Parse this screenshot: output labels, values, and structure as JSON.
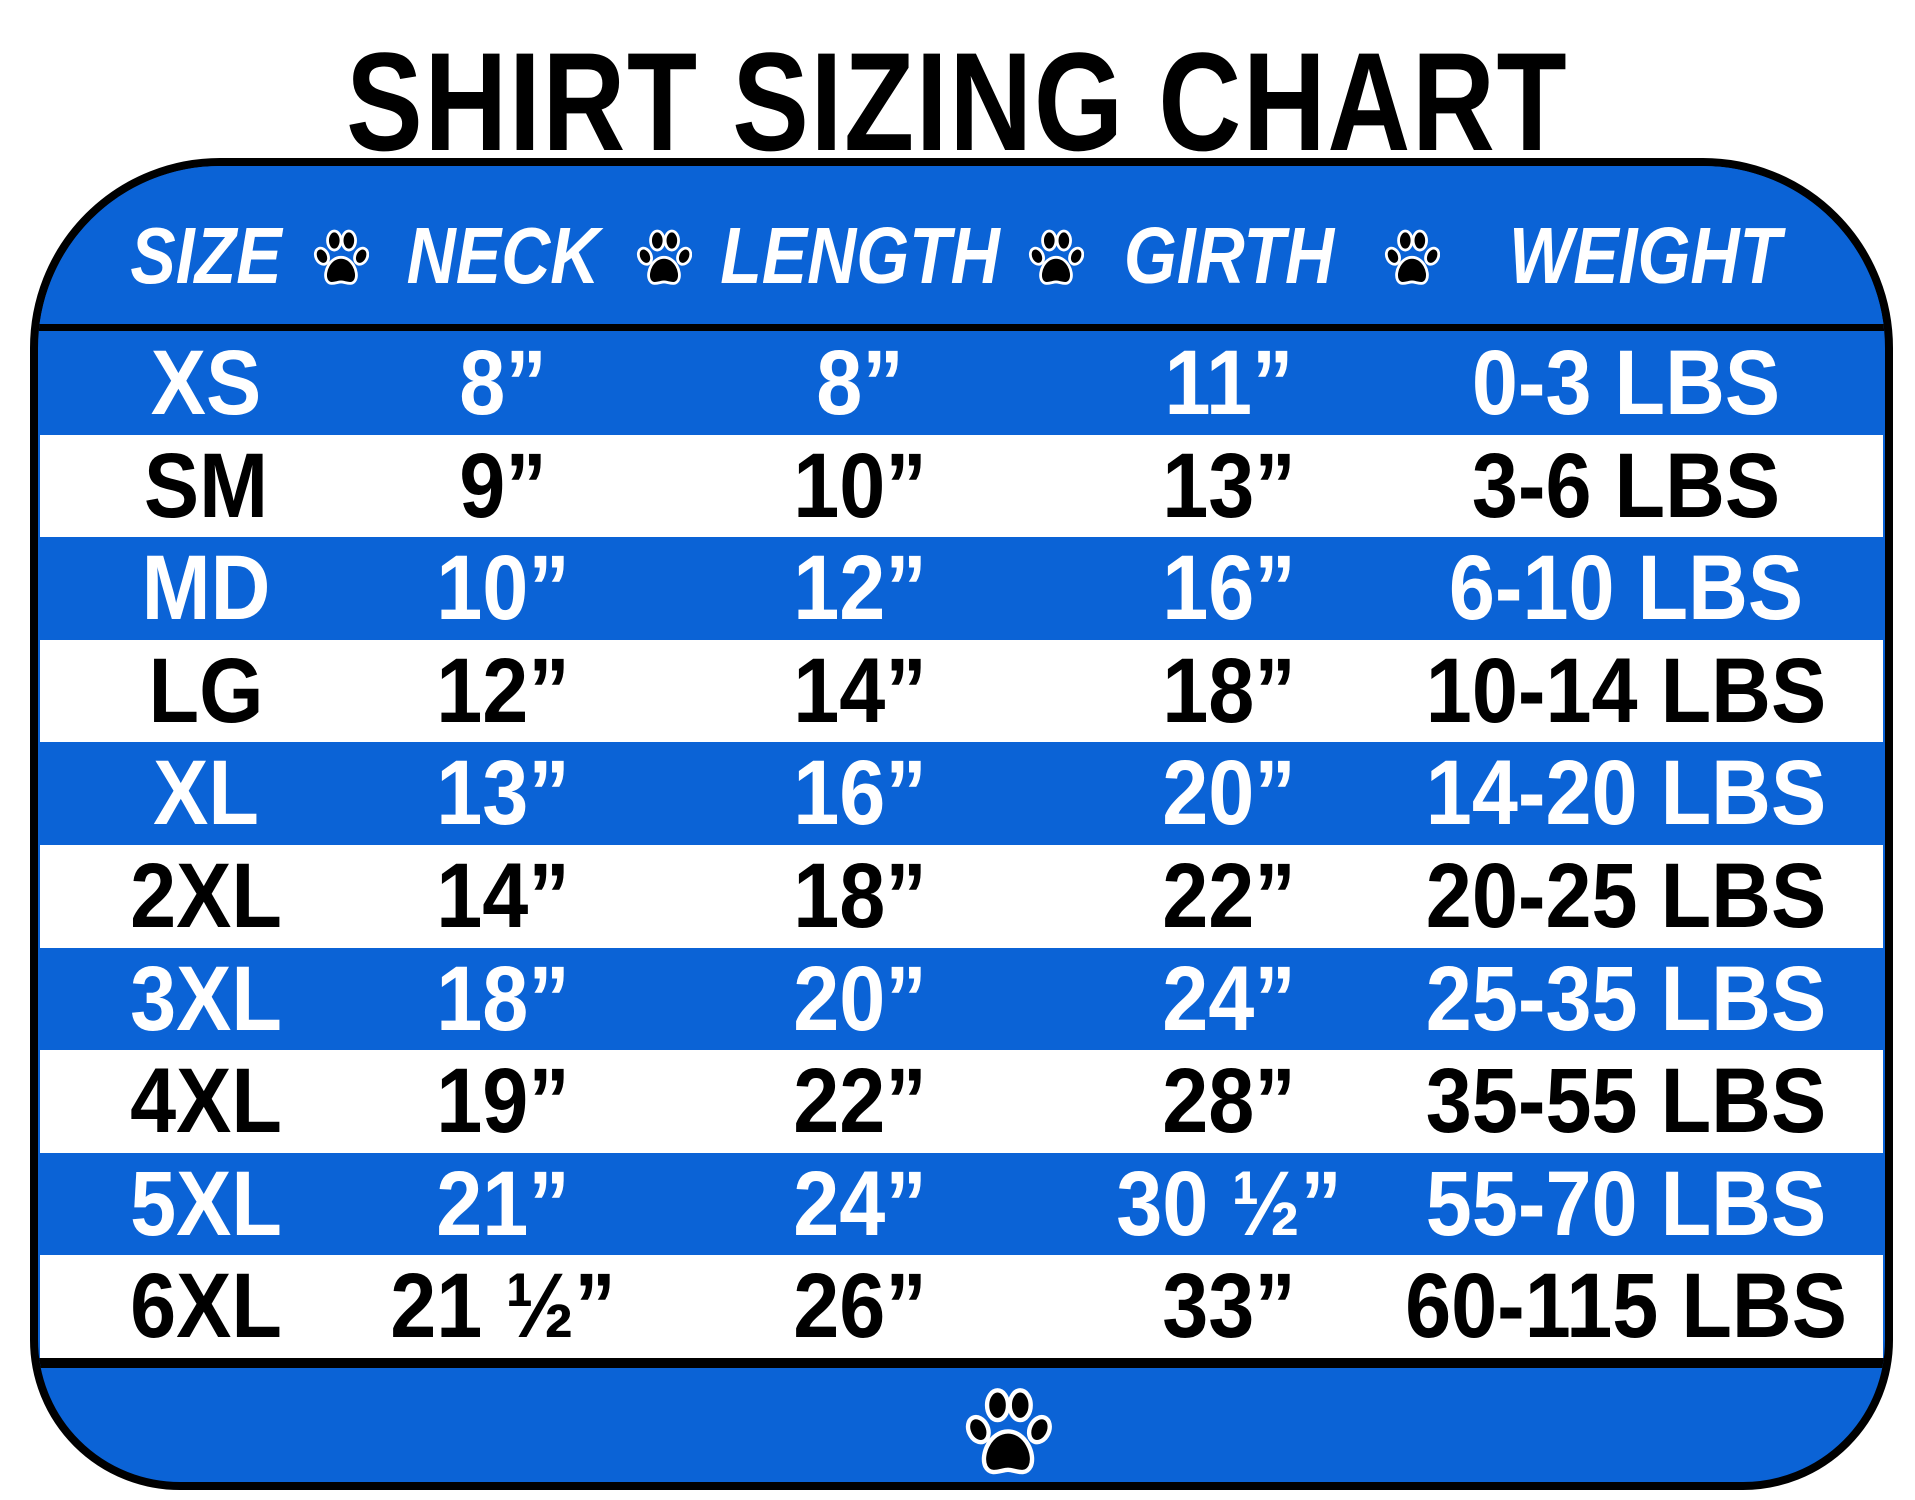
{
  "title": "SHIRT SIZING CHART",
  "colors": {
    "band_blue": "#0b63d6",
    "text_on_blue": "#ffffff",
    "text_on_white": "#000000",
    "border": "#000000"
  },
  "headers": [
    "SIZE",
    "NECK",
    "LENGTH",
    "GIRTH",
    "WEIGHT"
  ],
  "icons": {
    "header_separator": "paw-print-icon",
    "footer": "paw-print-icon"
  },
  "rows": [
    {
      "size": "XS",
      "neck": "8”",
      "length": "8”",
      "girth": "11”",
      "weight": "0-3 LBS"
    },
    {
      "size": "SM",
      "neck": "9”",
      "length": "10”",
      "girth": "13”",
      "weight": "3-6 LBS"
    },
    {
      "size": "MD",
      "neck": "10”",
      "length": "12”",
      "girth": "16”",
      "weight": "6-10 LBS"
    },
    {
      "size": "LG",
      "neck": "12”",
      "length": "14”",
      "girth": "18”",
      "weight": "10-14 LBS"
    },
    {
      "size": "XL",
      "neck": "13”",
      "length": "16”",
      "girth": "20”",
      "weight": "14-20 LBS"
    },
    {
      "size": "2XL",
      "neck": "14”",
      "length": "18”",
      "girth": "22”",
      "weight": "20-25 LBS"
    },
    {
      "size": "3XL",
      "neck": "18”",
      "length": "20”",
      "girth": "24”",
      "weight": "25-35 LBS"
    },
    {
      "size": "4XL",
      "neck": "19”",
      "length": "22”",
      "girth": "28”",
      "weight": "35-55 LBS"
    },
    {
      "size": "5XL",
      "neck": "21”",
      "length": "24”",
      "girth": "30 ½”",
      "weight": "55-70 LBS"
    },
    {
      "size": "6XL",
      "neck": "21 ½”",
      "length": "26”",
      "girth": "33”",
      "weight": "60-115 LBS"
    }
  ]
}
